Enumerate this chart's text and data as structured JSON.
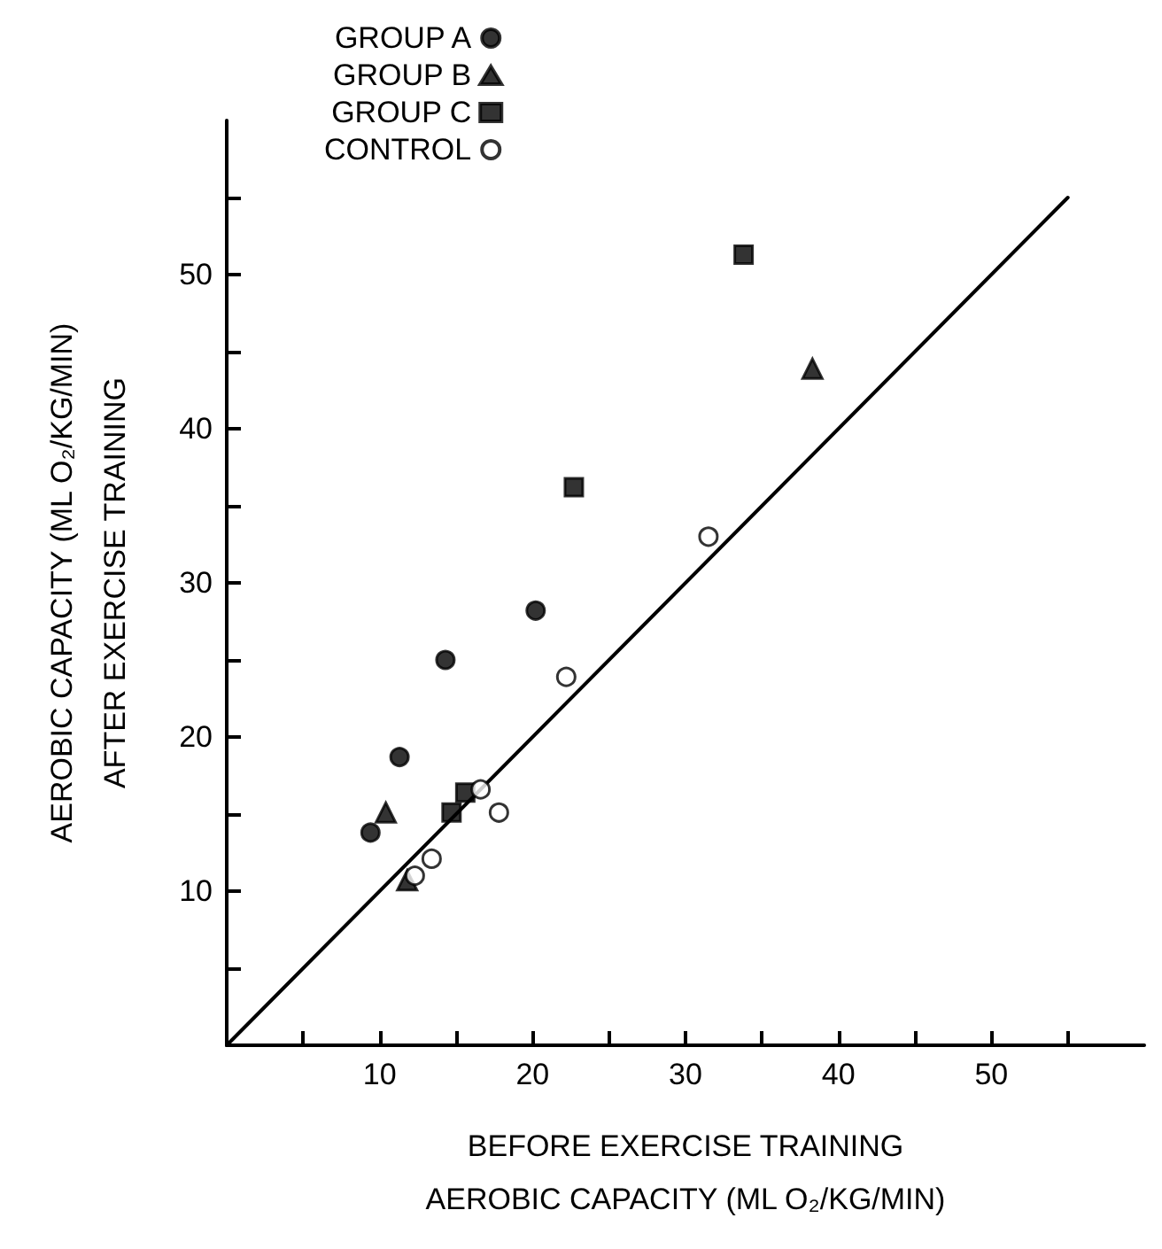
{
  "chart_data": {
    "type": "scatter",
    "xlabel": "BEFORE EXERCISE TRAINING\nAEROBIC CAPACITY (ML O₂/KG/MIN)",
    "ylabel": "AEROBIC CAPACITY (ML O₂/KG/MIN)\nAFTER EXERCISE TRAINING",
    "xlim": [
      0,
      60
    ],
    "ylim": [
      0,
      60
    ],
    "xticks": [
      {
        "value": 5,
        "label": null
      },
      10,
      {
        "value": 15,
        "label": null
      },
      20,
      {
        "value": 25,
        "label": null
      },
      30,
      {
        "value": 35,
        "label": null
      },
      40,
      {
        "value": 45,
        "label": null
      },
      50,
      {
        "value": 55,
        "label": null
      }
    ],
    "yticks": [
      {
        "value": 5,
        "label": null
      },
      10,
      {
        "value": 15,
        "label": null
      },
      20,
      {
        "value": 25,
        "label": null
      },
      30,
      {
        "value": 35,
        "label": null
      },
      40,
      {
        "value": 45,
        "label": null
      },
      50,
      {
        "value": 55,
        "label": null
      }
    ],
    "grid": false,
    "legend": "top left",
    "series": [
      {
        "name": "GROUP A",
        "color": "#000000",
        "marker": "circle",
        "x": [
          9.4,
          11.3,
          14.3,
          20.2
        ],
        "values": [
          13.8,
          18.7,
          25.0,
          28.2
        ]
      },
      {
        "name": "GROUP B",
        "color": "#000000",
        "marker": "triangle",
        "x": [
          10.4,
          11.8,
          38.3
        ],
        "values": [
          15.1,
          10.7,
          43.9
        ]
      },
      {
        "name": "GROUP C",
        "color": "#000000",
        "marker": "square",
        "x": [
          14.7,
          15.6,
          22.7,
          33.8
        ],
        "values": [
          15.1,
          16.4,
          36.2,
          51.3
        ]
      },
      {
        "name": "CONTROL",
        "color": "#ffffff",
        "marker": "circle",
        "x": [
          12.3,
          13.4,
          16.6,
          17.8,
          22.2,
          31.5
        ],
        "values": [
          11.0,
          12.1,
          16.6,
          15.1,
          23.9,
          33.0
        ]
      },
      {
        "type": "line",
        "color": "#000000",
        "marker": "none",
        "line_style": "solid",
        "x": [
          0,
          55
        ],
        "values": [
          0,
          55
        ]
      }
    ]
  }
}
